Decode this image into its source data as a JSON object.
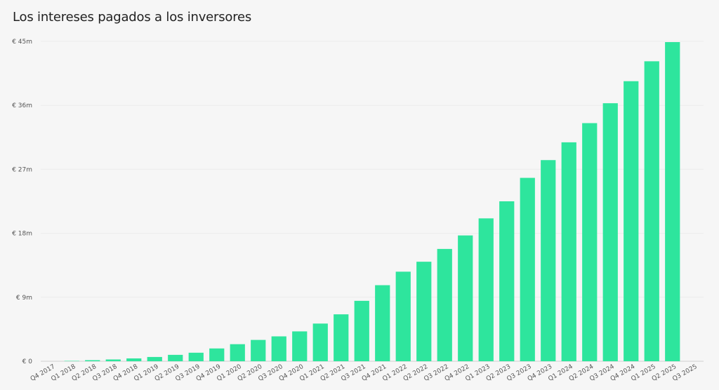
{
  "chart_data": {
    "type": "bar",
    "title": "Los intereses pagados a los inversores",
    "xlabel": "",
    "ylabel": "",
    "ylim": [
      0,
      45
    ],
    "grid": true,
    "legend": "none",
    "bar_color": "#2ee59d",
    "y_ticks": [
      0,
      9,
      18,
      27,
      36,
      45
    ],
    "y_tick_labels": [
      "€ 0",
      "€ 9m",
      "€ 18m",
      "€ 27m",
      "€ 36m",
      "€ 45m"
    ],
    "categories": [
      "Q4 2017",
      "Q1 2018",
      "Q2 2018",
      "Q3 2018",
      "Q4 2018",
      "Q1 2019",
      "Q2 2019",
      "Q3 2019",
      "Q4 2019",
      "Q1 2020",
      "Q2 2020",
      "Q3 2020",
      "Q4 2020",
      "Q1 2021",
      "Q2 2021",
      "Q3 2021",
      "Q4 2021",
      "Q1 2022",
      "Q2 2022",
      "Q3 2022",
      "Q4 2022",
      "Q1 2023",
      "Q2 2023",
      "Q3 2023",
      "Q4 2023",
      "Q1 2024",
      "Q2 2024",
      "Q3 2024",
      "Q4 2024",
      "Q1 2025",
      "Q2 2025",
      "Q3 2025"
    ],
    "values": [
      0,
      0.05,
      0.15,
      0.25,
      0.4,
      0.6,
      0.9,
      1.2,
      1.8,
      2.4,
      3.0,
      3.5,
      4.2,
      5.3,
      6.6,
      8.5,
      10.7,
      12.6,
      14.0,
      15.8,
      17.7,
      20.1,
      22.5,
      25.8,
      28.3,
      30.8,
      33.5,
      36.3,
      39.4,
      42.2,
      44.9,
      0
    ]
  }
}
